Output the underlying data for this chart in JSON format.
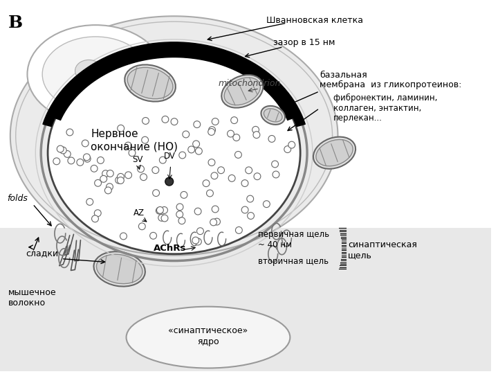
{
  "label_B": "B",
  "label_schwann": "Шванновская клетка",
  "label_gap": "зазор в 15 нм",
  "label_basal1": "базальная",
  "label_basal2": "мембрана  из гликопротеинов:",
  "label_basal3": "фибронектин, ламинин,",
  "label_basal4": "коллаген, энтактин,",
  "label_basal5": "перлекан...",
  "label_nerve": "Нервное\nокончание (НО)",
  "label_mito": "mitochondrion",
  "label_sv": "SV",
  "label_dv": "DV",
  "label_az": "AZ",
  "label_achrs": "AChRs",
  "label_folds": "folds",
  "label_sladki": "сладки",
  "label_primary": "первичная щель",
  "label_primary2": "~ 40 нм",
  "label_secondary": "вторичная щель",
  "label_synaptic1": "синаптическая",
  "label_synaptic2": "щель",
  "label_muscle1": "мышечное",
  "label_muscle2": "волокно",
  "label_nucleus1": "«синаптическое»",
  "label_nucleus2": "ядро"
}
